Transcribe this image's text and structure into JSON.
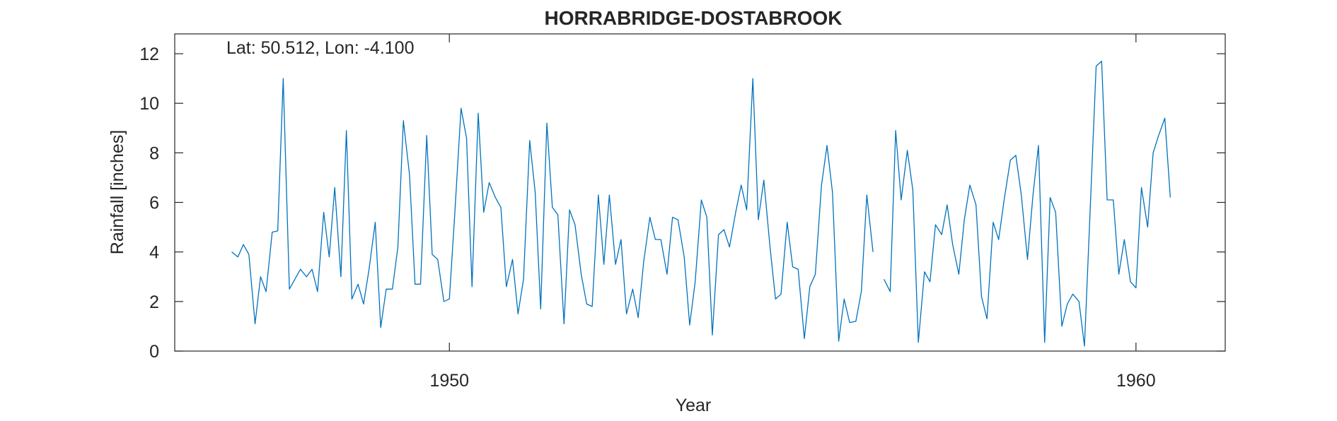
{
  "chart_data": {
    "type": "line",
    "title": "HORRABRIDGE-DOSTABROOK",
    "xlabel": "Year",
    "ylabel": "Rainfall [inches]",
    "annotation": "Lat: 50.512, Lon: -4.100",
    "xlim": [
      1946.0,
      1961.3
    ],
    "ylim": [
      0,
      12.8
    ],
    "xticks": [
      1950,
      1960
    ],
    "yticks": [
      0,
      2,
      4,
      6,
      8,
      10,
      12
    ],
    "grid": false,
    "box": true,
    "line_color": "#0072bd",
    "axis_color": "#262626",
    "series": [
      {
        "x": [
          1946.83,
          1946.92,
          1947.0,
          1947.08,
          1947.17,
          1947.25,
          1947.33,
          1947.42,
          1947.5,
          1947.58,
          1947.67,
          1947.75,
          1947.83,
          1947.92,
          1948.0,
          1948.08,
          1948.17,
          1948.25,
          1948.33,
          1948.42,
          1948.5,
          1948.58,
          1948.67,
          1948.75,
          1948.83,
          1948.92,
          1949.0,
          1949.08,
          1949.17,
          1949.25,
          1949.33,
          1949.42,
          1949.5,
          1949.58,
          1949.67,
          1949.75,
          1949.83,
          1949.92,
          1950.0,
          1950.08,
          1950.17,
          1950.25,
          1950.33,
          1950.42,
          1950.5,
          1950.58,
          1950.67,
          1950.75,
          1950.83,
          1950.92,
          1951.0,
          1951.08,
          1951.17,
          1951.25,
          1951.33,
          1951.42,
          1951.5,
          1951.58,
          1951.67,
          1951.75,
          1951.83,
          1951.92,
          1952.0,
          1952.08,
          1952.17,
          1952.25,
          1952.33,
          1952.42,
          1952.5,
          1952.58,
          1952.67,
          1952.75,
          1952.83,
          1952.92,
          1953.0,
          1953.08,
          1953.17,
          1953.25,
          1953.33,
          1953.42,
          1953.5,
          1953.58,
          1953.67,
          1953.75,
          1953.83,
          1953.92,
          1954.0,
          1954.08,
          1954.17,
          1954.25,
          1954.33,
          1954.42,
          1954.5,
          1954.58,
          1954.67,
          1954.75,
          1954.83,
          1954.92,
          1955.0,
          1955.08,
          1955.17,
          1955.25,
          1955.33,
          1955.42,
          1955.5,
          1955.58,
          1955.67,
          1955.75,
          1955.83,
          1955.92,
          1956.0,
          1956.08,
          1956.17,
          1956.25,
          1956.33,
          1956.42,
          1956.5,
          1956.58,
          1956.67,
          1956.75,
          1956.83,
          1956.92,
          1957.0,
          1957.08,
          1957.17,
          1957.25,
          1957.33,
          1957.42,
          1957.5,
          1957.58,
          1957.67,
          1957.75,
          1957.83,
          1957.92,
          1958.0,
          1958.08,
          1958.17,
          1958.25,
          1958.33,
          1958.42,
          1958.5,
          1958.58,
          1958.67,
          1958.75,
          1958.83,
          1958.92,
          1959.0,
          1959.08,
          1959.17,
          1959.25,
          1959.33,
          1959.42,
          1959.5,
          1959.58,
          1959.67,
          1959.75,
          1959.83,
          1959.92,
          1960.0,
          1960.08,
          1960.17,
          1960.25,
          1960.33,
          1960.42,
          1960.5
        ],
        "y": [
          4.0,
          3.8,
          4.3,
          3.9,
          1.1,
          3.0,
          2.4,
          4.8,
          4.85,
          11.0,
          2.5,
          2.9,
          3.3,
          3.0,
          3.3,
          2.4,
          5.6,
          3.8,
          6.6,
          3.0,
          8.9,
          2.1,
          2.7,
          1.9,
          3.3,
          5.2,
          0.95,
          2.5,
          2.5,
          4.2,
          9.3,
          7.1,
          2.7,
          2.7,
          8.7,
          3.9,
          3.7,
          2.0,
          2.1,
          5.6,
          9.8,
          8.6,
          2.6,
          9.6,
          5.6,
          6.8,
          6.2,
          5.8,
          2.6,
          3.7,
          1.5,
          2.9,
          8.5,
          6.4,
          1.7,
          9.2,
          5.8,
          5.5,
          1.1,
          5.7,
          5.1,
          3.1,
          1.9,
          1.8,
          6.3,
          3.5,
          6.3,
          3.5,
          4.5,
          1.5,
          2.5,
          1.35,
          3.6,
          5.4,
          4.5,
          4.5,
          3.1,
          5.4,
          5.3,
          3.8,
          1.05,
          2.8,
          6.1,
          5.4,
          0.65,
          4.7,
          4.9,
          4.2,
          5.6,
          6.7,
          5.7,
          11.0,
          5.3,
          6.9,
          4.2,
          2.1,
          2.3,
          5.2,
          3.4,
          3.3,
          0.5,
          2.6,
          3.1,
          6.7,
          8.3,
          6.4,
          0.4,
          2.1,
          1.15,
          1.2,
          2.4,
          6.3,
          4.0,
          null,
          2.9,
          2.4,
          8.9,
          6.1,
          8.1,
          6.5,
          0.35,
          3.2,
          2.8,
          5.1,
          4.7,
          5.9,
          4.3,
          3.1,
          5.3,
          6.7,
          5.9,
          2.2,
          1.3,
          5.2,
          4.5,
          6.1,
          7.7,
          7.9,
          6.3,
          3.7,
          6.3,
          8.3,
          0.35,
          6.2,
          5.6,
          1.0,
          1.9,
          2.3,
          2.0,
          0.2,
          5.5,
          11.5,
          11.7,
          6.1,
          6.1,
          3.1,
          4.5,
          2.8,
          2.55,
          6.6,
          5.0,
          8.0,
          8.7,
          9.4,
          6.2
        ]
      }
    ]
  }
}
